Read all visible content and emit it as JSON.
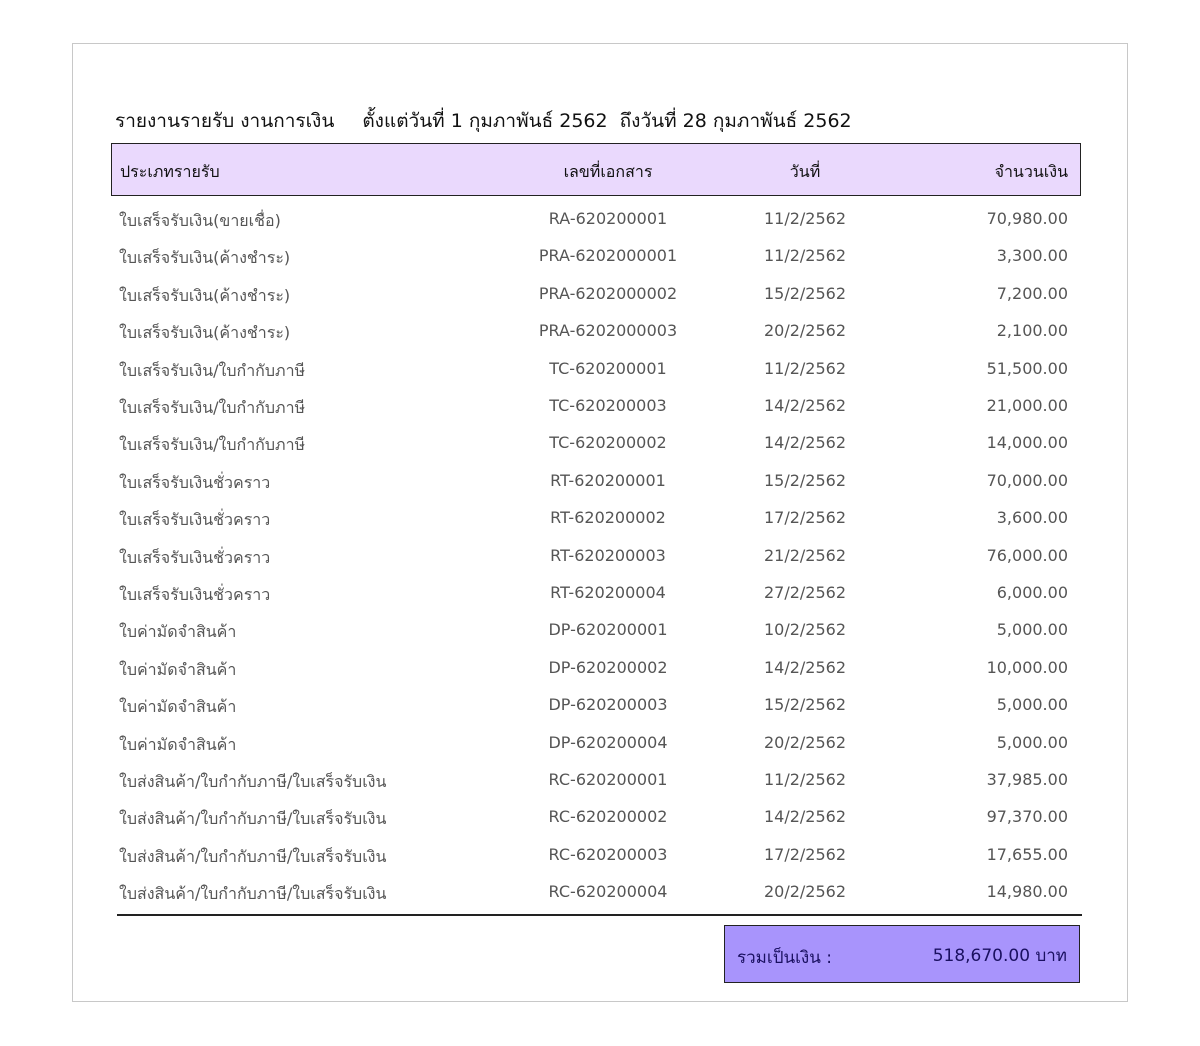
{
  "report": {
    "title": "รายงานรายรับ งานการเงิน",
    "period": "ตั้งแต่วันที่ 1 กุมภาพันธ์ 2562  ถึงวันที่ 28 กุมภาพันธ์ 2562"
  },
  "columns": {
    "type": "ประเภทรายรับ",
    "doc_no": "เลขที่เอกสาร",
    "date": "วันที่",
    "amount": "จำนวนเงิน"
  },
  "rows": [
    {
      "type": "ใบเสร็จรับเงิน(ขายเชื่อ)",
      "doc_no": "RA-620200001",
      "date": "11/2/2562",
      "amount": "70,980.00"
    },
    {
      "type": "ใบเสร็จรับเงิน(ค้างชำระ)",
      "doc_no": "PRA-6202000001",
      "date": "11/2/2562",
      "amount": "3,300.00"
    },
    {
      "type": "ใบเสร็จรับเงิน(ค้างชำระ)",
      "doc_no": "PRA-6202000002",
      "date": "15/2/2562",
      "amount": "7,200.00"
    },
    {
      "type": "ใบเสร็จรับเงิน(ค้างชำระ)",
      "doc_no": "PRA-6202000003",
      "date": "20/2/2562",
      "amount": "2,100.00"
    },
    {
      "type": "ใบเสร็จรับเงิน/ใบกำกับภาษี",
      "doc_no": "TC-620200001",
      "date": "11/2/2562",
      "amount": "51,500.00"
    },
    {
      "type": "ใบเสร็จรับเงิน/ใบกำกับภาษี",
      "doc_no": "TC-620200003",
      "date": "14/2/2562",
      "amount": "21,000.00"
    },
    {
      "type": "ใบเสร็จรับเงิน/ใบกำกับภาษี",
      "doc_no": "TC-620200002",
      "date": "14/2/2562",
      "amount": "14,000.00"
    },
    {
      "type": "ใบเสร็จรับเงินชั่วคราว",
      "doc_no": "RT-620200001",
      "date": "15/2/2562",
      "amount": "70,000.00"
    },
    {
      "type": "ใบเสร็จรับเงินชั่วคราว",
      "doc_no": "RT-620200002",
      "date": "17/2/2562",
      "amount": "3,600.00"
    },
    {
      "type": "ใบเสร็จรับเงินชั่วคราว",
      "doc_no": "RT-620200003",
      "date": "21/2/2562",
      "amount": "76,000.00"
    },
    {
      "type": "ใบเสร็จรับเงินชั่วคราว",
      "doc_no": "RT-620200004",
      "date": "27/2/2562",
      "amount": "6,000.00"
    },
    {
      "type": "ใบค่ามัดจำสินค้า",
      "doc_no": "DP-620200001",
      "date": "10/2/2562",
      "amount": "5,000.00"
    },
    {
      "type": "ใบค่ามัดจำสินค้า",
      "doc_no": "DP-620200002",
      "date": "14/2/2562",
      "amount": "10,000.00"
    },
    {
      "type": "ใบค่ามัดจำสินค้า",
      "doc_no": "DP-620200003",
      "date": "15/2/2562",
      "amount": "5,000.00"
    },
    {
      "type": "ใบค่ามัดจำสินค้า",
      "doc_no": "DP-620200004",
      "date": "20/2/2562",
      "amount": "5,000.00"
    },
    {
      "type": "ใบส่งสินค้า/ใบกำกับภาษี/ใบเสร็จรับเงิน",
      "doc_no": "RC-620200001",
      "date": "11/2/2562",
      "amount": "37,985.00"
    },
    {
      "type": "ใบส่งสินค้า/ใบกำกับภาษี/ใบเสร็จรับเงิน",
      "doc_no": "RC-620200002",
      "date": "14/2/2562",
      "amount": "97,370.00"
    },
    {
      "type": "ใบส่งสินค้า/ใบกำกับภาษี/ใบเสร็จรับเงิน",
      "doc_no": "RC-620200003",
      "date": "17/2/2562",
      "amount": "17,655.00"
    },
    {
      "type": "ใบส่งสินค้า/ใบกำกับภาษี/ใบเสร็จรับเงิน",
      "doc_no": "RC-620200004",
      "date": "20/2/2562",
      "amount": "14,980.00"
    }
  ],
  "total": {
    "label": "รวมเป็นเงิน :",
    "amount": "518,670.00  บาท"
  },
  "colors": {
    "header_bg": "#ead9fd",
    "total_bg": "#a894fc"
  }
}
